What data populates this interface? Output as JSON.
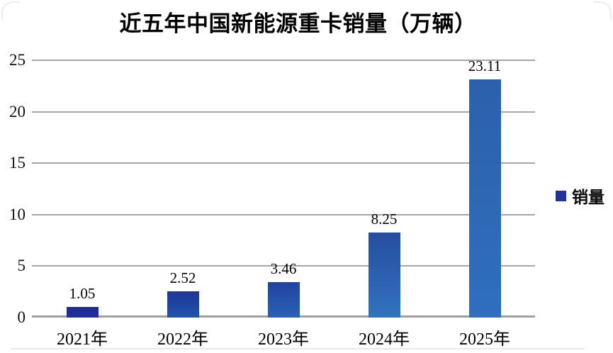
{
  "chart_data": {
    "type": "bar",
    "title": "近五年中国新能源重卡销量（万辆）",
    "categories": [
      "2021年",
      "2022年",
      "2023年",
      "2024年",
      "2025年"
    ],
    "values": [
      1.05,
      2.52,
      3.46,
      8.25,
      23.11
    ],
    "value_labels": [
      "1.05",
      "2.52",
      "3.46",
      "8.25",
      "23.11"
    ],
    "ylim": [
      0,
      25
    ],
    "yticks": [
      0,
      5,
      10,
      15,
      20,
      25
    ],
    "ytick_labels": [
      "0",
      "5",
      "10",
      "15",
      "20",
      "25"
    ],
    "grid": true,
    "legend": {
      "label": "销量",
      "position": "right",
      "swatch_color": "#1f339e"
    },
    "colors": {
      "gridline": "#a6a6a6",
      "baseline": "#9e9e9e",
      "bar_gradients": [
        [
          "#1d2d96",
          "#202f9c"
        ],
        [
          "#1d3697",
          "#2153ab"
        ],
        [
          "#2143a0",
          "#2a62b5"
        ],
        [
          "#264d9f",
          "#3173c0"
        ],
        [
          "#2c60ad",
          "#2f6fbd"
        ]
      ]
    }
  }
}
